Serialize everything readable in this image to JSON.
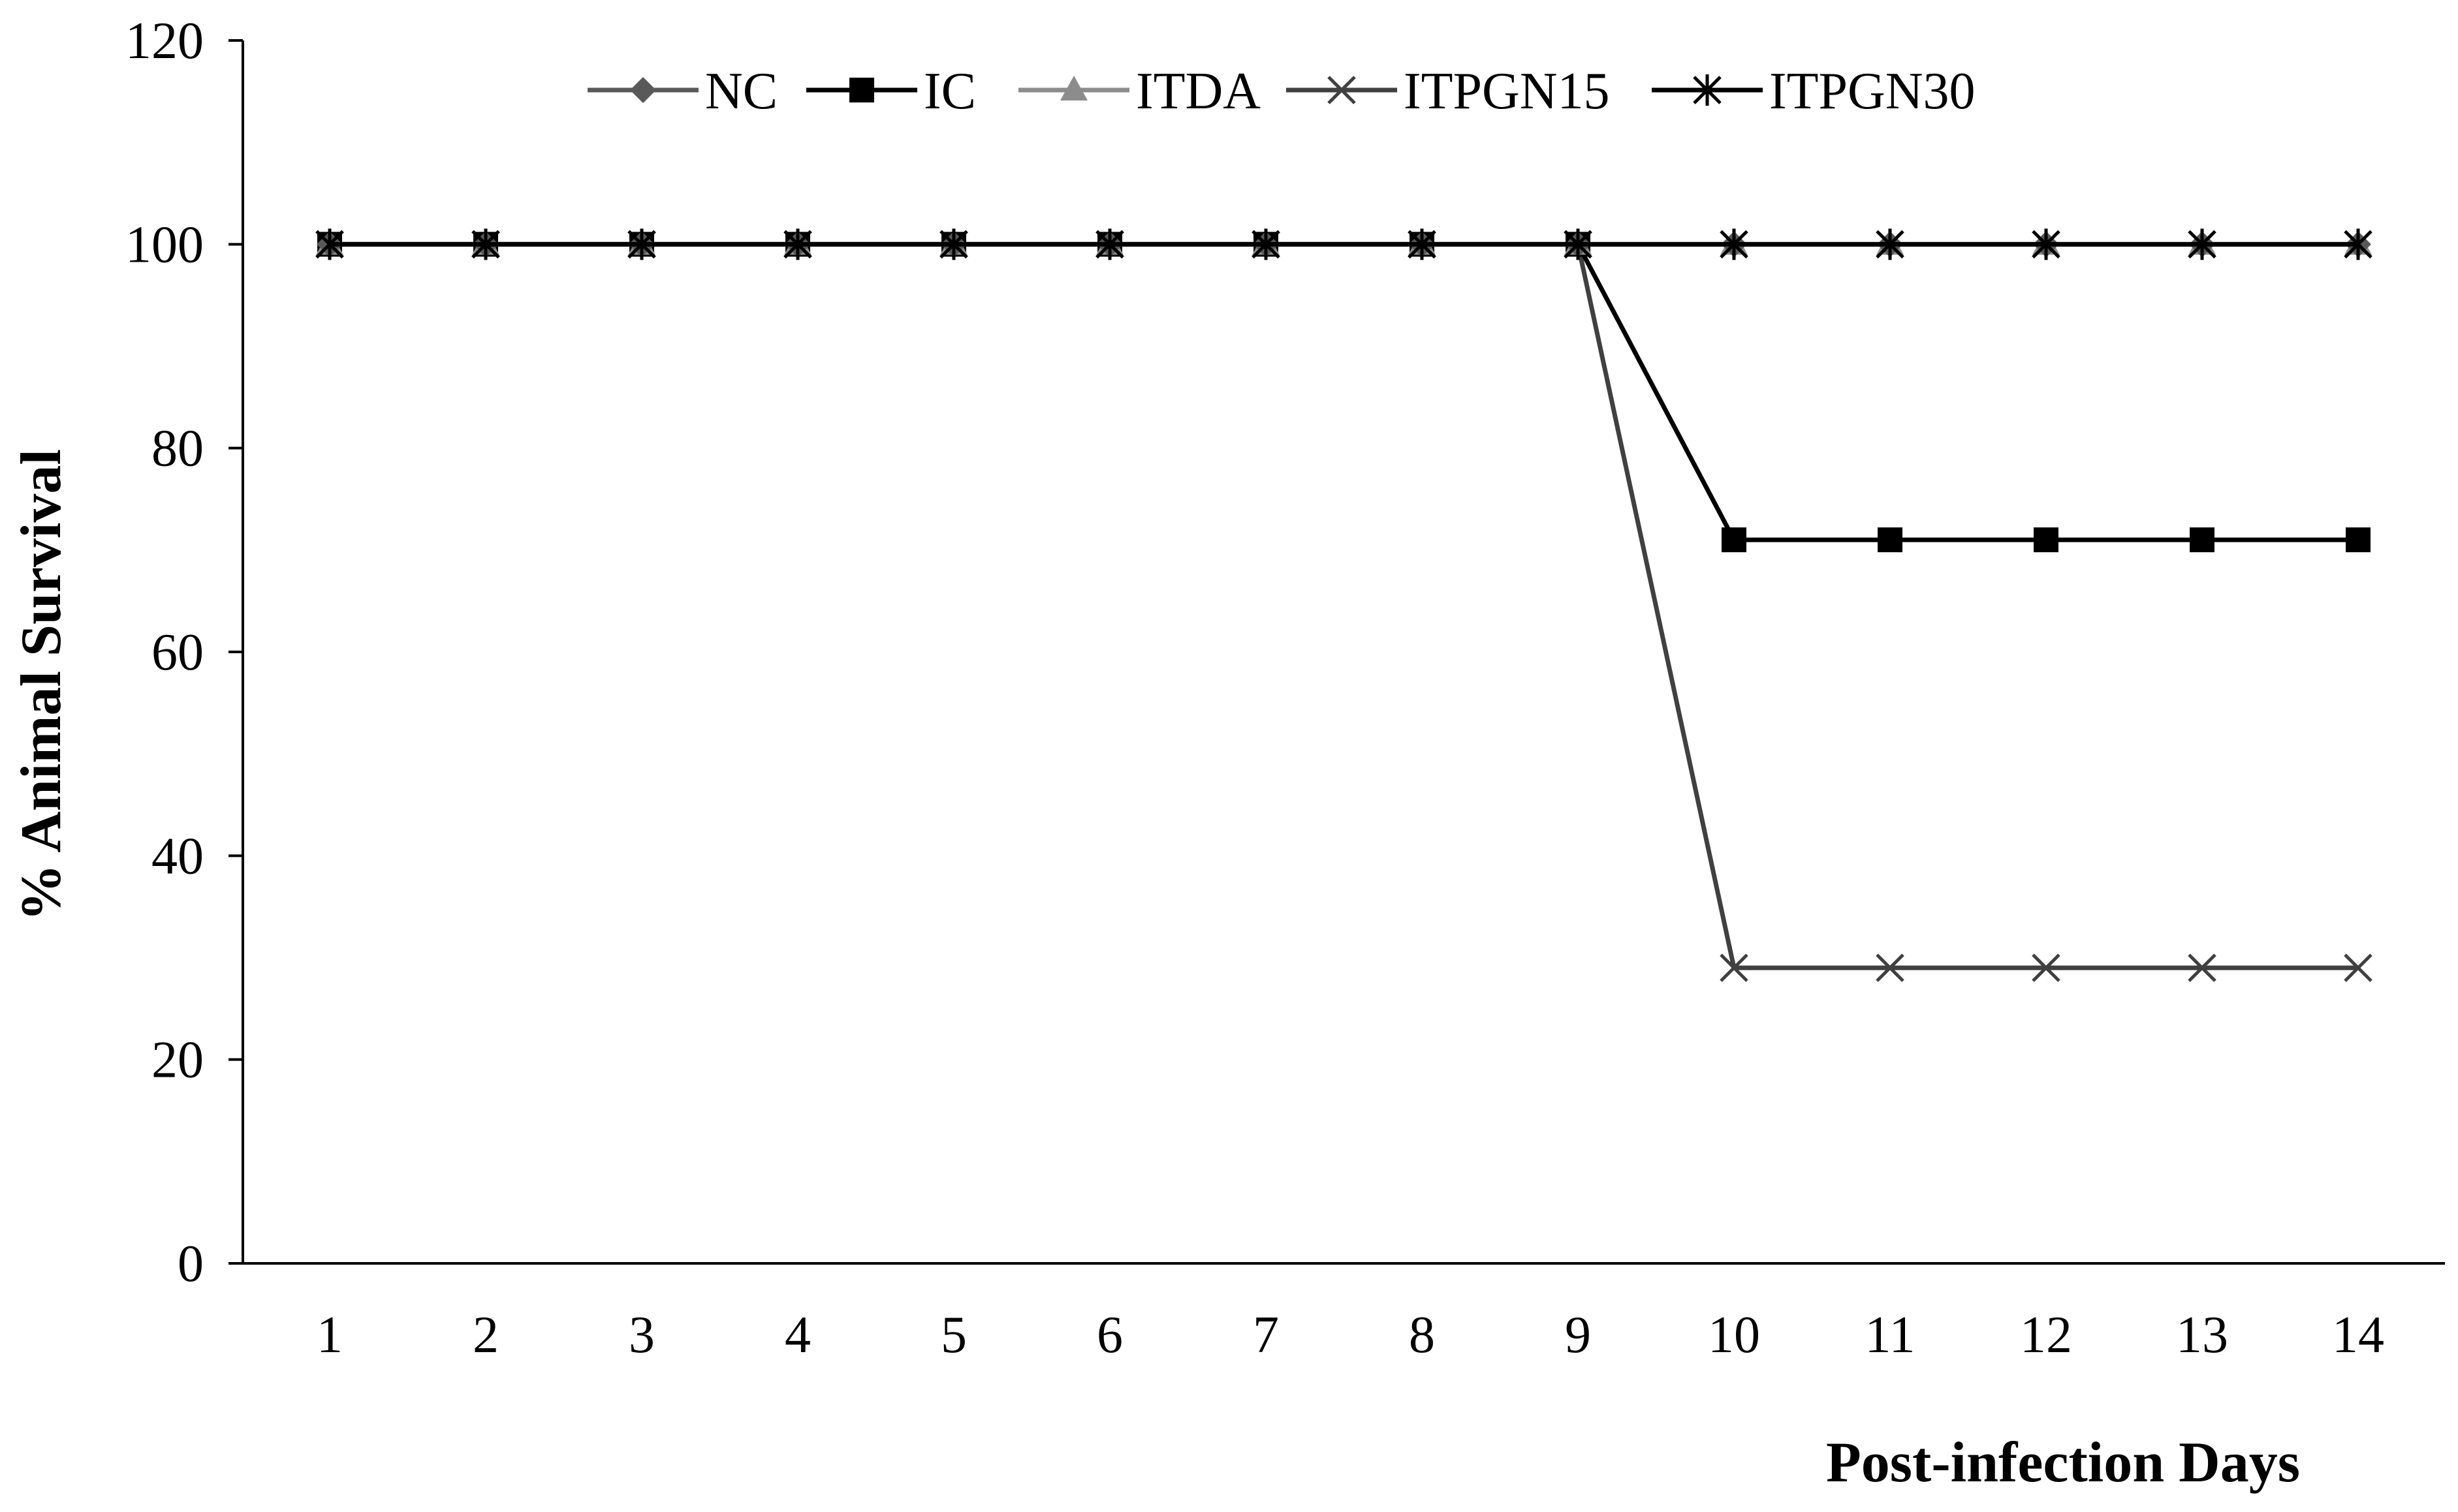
{
  "chart_data": {
    "type": "line",
    "title": "",
    "xlabel": "Post-infection Days",
    "ylabel": "% Animal Survival",
    "categories": [
      "1",
      "2",
      "3",
      "4",
      "5",
      "6",
      "7",
      "8",
      "9",
      "10",
      "11",
      "12",
      "13",
      "14"
    ],
    "yticks": [
      "0",
      "20",
      "40",
      "60",
      "80",
      "100",
      "120"
    ],
    "ylim": [
      0,
      120
    ],
    "grid": false,
    "legend_position": "top",
    "series": [
      {
        "name": "NC",
        "marker": "diamond",
        "color": "#595959",
        "values": [
          100,
          100,
          100,
          100,
          100,
          100,
          100,
          100,
          100,
          100,
          100,
          100,
          100,
          100
        ]
      },
      {
        "name": "IC",
        "marker": "square",
        "color": "#000000",
        "values": [
          100,
          100,
          100,
          100,
          100,
          100,
          100,
          100,
          100,
          71,
          71,
          71,
          71,
          71
        ]
      },
      {
        "name": "ITDA",
        "marker": "triangle",
        "color": "#8c8c8c",
        "values": [
          100,
          100,
          100,
          100,
          100,
          100,
          100,
          100,
          100,
          100,
          100,
          100,
          100,
          100
        ]
      },
      {
        "name": "ITPGN15",
        "marker": "x",
        "color": "#404040",
        "values": [
          100,
          100,
          100,
          100,
          100,
          100,
          100,
          100,
          100,
          29,
          29,
          29,
          29,
          29
        ]
      },
      {
        "name": "ITPGN30",
        "marker": "star",
        "color": "#000000",
        "values": [
          100,
          100,
          100,
          100,
          100,
          100,
          100,
          100,
          100,
          100,
          100,
          100,
          100,
          100
        ]
      }
    ]
  }
}
